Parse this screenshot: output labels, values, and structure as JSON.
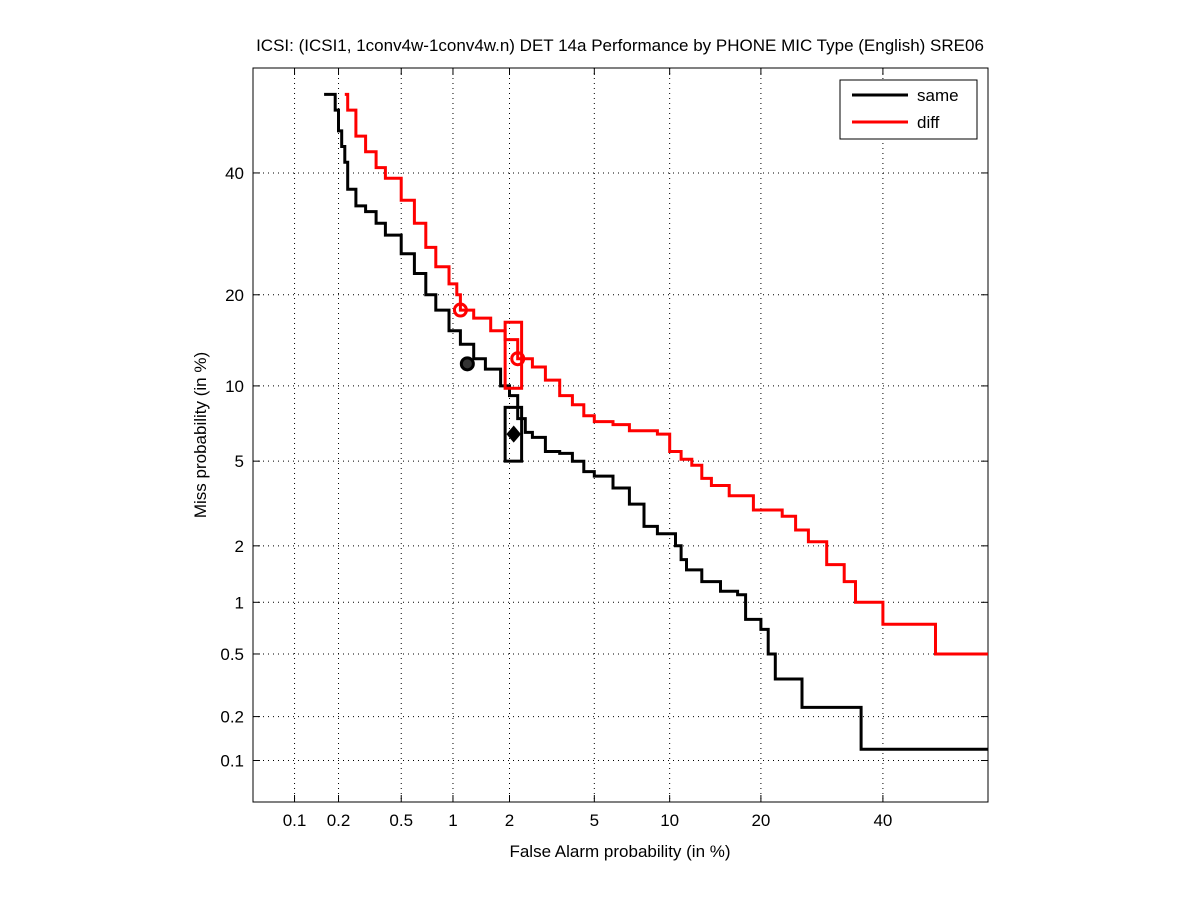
{
  "chart_data": {
    "type": "line",
    "title": "ICSI: (ICSI1, 1conv4w-1conv4w.n) DET 14a Performance by PHONE MIC Type (English) SRE06",
    "xlabel": "False Alarm probability (in %)",
    "ylabel": "Miss probability (in %)",
    "x_scale": "probit",
    "y_scale": "probit",
    "xlim": [
      0.05,
      60
    ],
    "ylim": [
      0.05,
      60
    ],
    "grid": true,
    "legend_position": "top-right",
    "x_ticks": [
      "0.1",
      "0.2",
      "0.5",
      "1",
      "2",
      "5",
      "10",
      "20",
      "40"
    ],
    "y_ticks": [
      "0.1",
      "0.2",
      "0.5",
      "1",
      "2",
      "5",
      "10",
      "20",
      "40"
    ],
    "series": [
      {
        "name": "same",
        "color": "#000000",
        "points": [
          [
            0.16,
            55
          ],
          [
            0.19,
            52
          ],
          [
            0.2,
            48
          ],
          [
            0.21,
            45
          ],
          [
            0.22,
            42
          ],
          [
            0.23,
            37
          ],
          [
            0.26,
            34
          ],
          [
            0.3,
            33
          ],
          [
            0.35,
            31
          ],
          [
            0.4,
            29
          ],
          [
            0.5,
            26
          ],
          [
            0.6,
            23
          ],
          [
            0.7,
            20
          ],
          [
            0.8,
            18
          ],
          [
            0.95,
            15.5
          ],
          [
            1.1,
            14
          ],
          [
            1.3,
            12.5
          ],
          [
            1.5,
            11.5
          ],
          [
            1.8,
            10
          ],
          [
            2.0,
            9.2
          ],
          [
            2.2,
            7.5
          ],
          [
            2.4,
            6.6
          ],
          [
            2.6,
            6.3
          ],
          [
            3.0,
            5.5
          ],
          [
            3.5,
            5.4
          ],
          [
            4.0,
            5.0
          ],
          [
            4.5,
            4.5
          ],
          [
            5.0,
            4.3
          ],
          [
            6.0,
            3.8
          ],
          [
            7.0,
            3.2
          ],
          [
            8.0,
            2.5
          ],
          [
            9.0,
            2.3
          ],
          [
            10.5,
            2.0
          ],
          [
            11.0,
            1.7
          ],
          [
            11.5,
            1.5
          ],
          [
            13.0,
            1.3
          ],
          [
            15.0,
            1.15
          ],
          [
            17.0,
            1.1
          ],
          [
            18.0,
            0.8
          ],
          [
            20.0,
            0.7
          ],
          [
            21.0,
            0.5
          ],
          [
            22.0,
            0.35
          ],
          [
            26.0,
            0.23
          ],
          [
            35.0,
            0.23
          ],
          [
            36.0,
            0.12
          ],
          [
            60.0,
            0.12
          ]
        ]
      },
      {
        "name": "diff",
        "color": "#ff0000",
        "points": [
          [
            0.22,
            55
          ],
          [
            0.23,
            52
          ],
          [
            0.26,
            47
          ],
          [
            0.3,
            44
          ],
          [
            0.35,
            41
          ],
          [
            0.4,
            39
          ],
          [
            0.5,
            35
          ],
          [
            0.6,
            31
          ],
          [
            0.7,
            27
          ],
          [
            0.8,
            24
          ],
          [
            0.95,
            21.5
          ],
          [
            1.05,
            20
          ],
          [
            1.1,
            18
          ],
          [
            1.3,
            17
          ],
          [
            1.6,
            15.5
          ],
          [
            1.9,
            14.5
          ],
          [
            2.2,
            12.5
          ],
          [
            2.6,
            11.7
          ],
          [
            3.0,
            10.5
          ],
          [
            3.5,
            9.2
          ],
          [
            4.0,
            8.5
          ],
          [
            4.5,
            7.7
          ],
          [
            5.0,
            7.3
          ],
          [
            6.0,
            7.1
          ],
          [
            7.0,
            6.7
          ],
          [
            9.0,
            6.5
          ],
          [
            10.0,
            5.5
          ],
          [
            11.0,
            5.1
          ],
          [
            12.0,
            4.8
          ],
          [
            13.0,
            4.2
          ],
          [
            14.0,
            3.9
          ],
          [
            16.0,
            3.5
          ],
          [
            19.0,
            3.0
          ],
          [
            23.0,
            2.8
          ],
          [
            25.0,
            2.4
          ],
          [
            27.0,
            2.1
          ],
          [
            30.0,
            1.6
          ],
          [
            33.0,
            1.3
          ],
          [
            35.0,
            1.0
          ],
          [
            40.0,
            0.75
          ],
          [
            48.0,
            0.75
          ],
          [
            50.0,
            0.5
          ],
          [
            60.0,
            0.5
          ]
        ]
      }
    ],
    "markers": [
      {
        "series": "same",
        "shape": "circle",
        "x": 1.2,
        "y": 12,
        "color": "#000000"
      },
      {
        "series": "diff",
        "shape": "circle",
        "x": 1.1,
        "y": 18,
        "color": "#ff0000"
      },
      {
        "series": "same",
        "shape": "diamond",
        "x": 2.1,
        "y": 6.5,
        "color": "#000000"
      },
      {
        "series": "diff",
        "shape": "circle",
        "x": 2.2,
        "y": 12.5,
        "color": "#ff0000"
      }
    ],
    "confidence_boxes": [
      {
        "series": "same",
        "x_range": [
          1.9,
          2.3
        ],
        "y_range": [
          5.0,
          8.3
        ],
        "color": "#000000"
      },
      {
        "series": "diff",
        "x_range": [
          1.9,
          2.3
        ],
        "y_range": [
          9.8,
          16.5
        ],
        "color": "#ff0000"
      }
    ]
  }
}
